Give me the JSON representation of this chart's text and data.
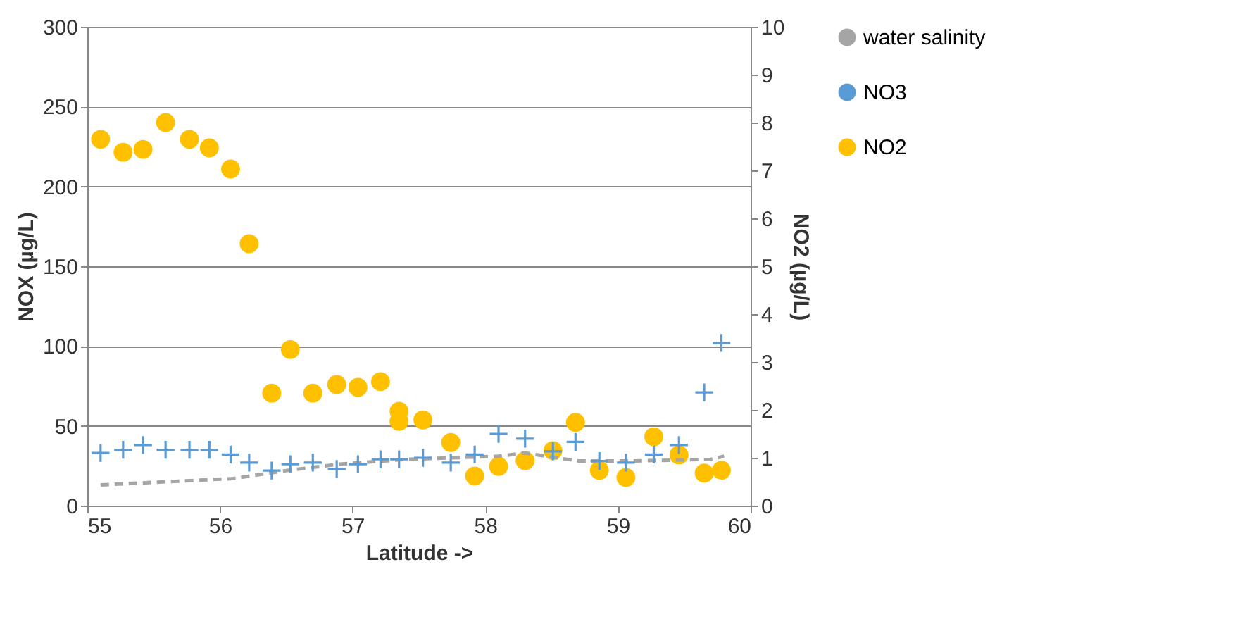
{
  "chart_data": {
    "type": "scatter",
    "xlabel": "Latitude ->",
    "ylabel": "NOX (µg/L)",
    "y2label": "NO2 (µg/L)",
    "xlim": [
      55,
      60
    ],
    "xticks": [
      55,
      56,
      57,
      58,
      59,
      60
    ],
    "ylim": [
      0,
      300
    ],
    "yticks": [
      0,
      50,
      100,
      150,
      200,
      250,
      300
    ],
    "y2lim": [
      0,
      10
    ],
    "y2ticks": [
      0,
      1,
      2,
      3,
      4,
      5,
      6,
      7,
      8,
      9,
      10
    ],
    "grid": "y",
    "legend": "right",
    "series": [
      {
        "name": "water salinity",
        "type": "line",
        "line_style": "dashed",
        "marker": "none",
        "color": "#a5a5a5",
        "x": [
          55.1,
          56.1,
          56.5,
          56.9,
          57.4,
          58.1,
          58.3,
          58.7,
          59.1,
          59.7,
          59.8
        ],
        "values": [
          13,
          17,
          22,
          26,
          29,
          31,
          33,
          28,
          28,
          29,
          31
        ]
      },
      {
        "name": "NO3",
        "marker": "cross",
        "color": "#5b9bd5",
        "x": [
          55.1,
          55.27,
          55.42,
          55.59,
          55.77,
          55.92,
          56.08,
          56.22,
          56.39,
          56.53,
          56.7,
          56.88,
          57.04,
          57.21,
          57.35,
          57.53,
          57.74,
          57.92,
          58.1,
          58.3,
          58.51,
          58.68,
          58.86,
          59.06,
          59.27,
          59.46,
          59.65,
          59.78
        ],
        "values": [
          33,
          35,
          38,
          35,
          35,
          35,
          32,
          27,
          22,
          26,
          27,
          23,
          26,
          29,
          29,
          30,
          27,
          32,
          45,
          42,
          34,
          40,
          28,
          27,
          32,
          38,
          71,
          102
        ]
      },
      {
        "name": "NO2",
        "type": "scatter",
        "marker": "circle",
        "axis": "y2",
        "color": "#ffc000",
        "x": [
          55.1,
          55.27,
          55.42,
          55.59,
          55.77,
          55.92,
          56.08,
          56.22,
          56.39,
          56.53,
          56.7,
          56.88,
          57.04,
          57.21,
          57.35,
          57.35,
          57.53,
          57.74,
          57.92,
          58.1,
          58.3,
          58.51,
          58.68,
          58.86,
          59.06,
          59.27,
          59.46,
          59.65,
          59.78
        ],
        "values": [
          7.65,
          7.38,
          7.44,
          8,
          7.65,
          7.47,
          7.03,
          5.47,
          2.35,
          3.26,
          2.35,
          2.53,
          2.47,
          2.59,
          1.97,
          1.76,
          1.79,
          1.32,
          0.62,
          0.82,
          0.94,
          1.15,
          1.74,
          0.74,
          0.59,
          1.44,
          1.06,
          0.68,
          0.74
        ]
      }
    ]
  }
}
